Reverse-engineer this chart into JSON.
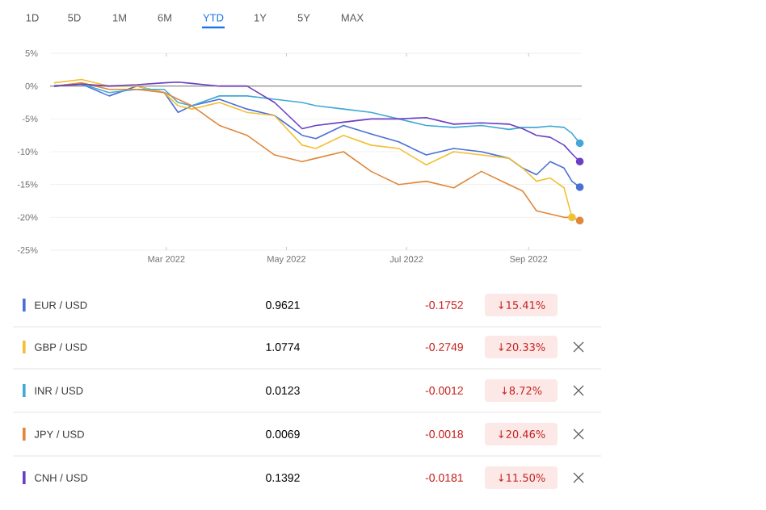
{
  "chart_data": {
    "type": "line",
    "x": [
      "2022-01-03",
      "2022-01-17",
      "2022-01-31",
      "2022-02-14",
      "2022-02-28",
      "2022-03-07",
      "2022-03-14",
      "2022-03-28",
      "2022-04-11",
      "2022-04-25",
      "2022-05-09",
      "2022-05-16",
      "2022-05-30",
      "2022-06-13",
      "2022-06-27",
      "2022-07-11",
      "2022-07-25",
      "2022-08-08",
      "2022-08-22",
      "2022-08-29",
      "2022-09-05",
      "2022-09-12",
      "2022-09-19",
      "2022-09-23",
      "2022-09-27"
    ],
    "series": [
      {
        "name": "EUR / USD",
        "color": "#4a6fd6",
        "values": [
          0,
          0.3,
          -1.5,
          0,
          -1,
          -4,
          -3,
          -2,
          -3.5,
          -4.5,
          -7.5,
          -8,
          -6,
          -7.3,
          -8.5,
          -10.5,
          -9.5,
          -10,
          -11,
          -12.5,
          -13.5,
          -11.5,
          -12.5,
          -14.5,
          -15.4
        ]
      },
      {
        "name": "GBP / USD",
        "color": "#f2c035",
        "values": [
          0.5,
          1,
          0,
          0,
          -1,
          -3,
          -3.5,
          -2.5,
          -4,
          -4.5,
          -9,
          -9.5,
          -7.5,
          -9,
          -9.5,
          -12,
          -10,
          -10.5,
          -11,
          -12.5,
          -14.5,
          -14,
          -15.5,
          -20,
          null
        ]
      },
      {
        "name": "INR / USD",
        "color": "#42a8d6",
        "values": [
          0,
          0.3,
          -1,
          -0.5,
          -0.5,
          -2.5,
          -3,
          -1.5,
          -1.5,
          -2,
          -2.5,
          -3,
          -3.5,
          -4,
          -5,
          -6,
          -6.3,
          -6,
          -6.6,
          -6.3,
          -6.3,
          -6.1,
          -6.3,
          -7.2,
          -8.7
        ]
      },
      {
        "name": "JPY / USD",
        "color": "#e0873a",
        "values": [
          0,
          0.5,
          -0.5,
          -0.5,
          -1,
          -2,
          -3,
          -6,
          -7.5,
          -10.5,
          -11.5,
          -11,
          -10,
          -13,
          -15,
          -14.5,
          -15.5,
          -13,
          -15,
          -16,
          -19,
          -19.5,
          -20,
          -20,
          -20.5
        ]
      },
      {
        "name": "CNH / USD",
        "color": "#6a3fc4",
        "values": [
          0,
          0.3,
          0,
          0.2,
          0.5,
          0.6,
          0.4,
          0,
          0,
          -2.5,
          -6.5,
          -6,
          -5.5,
          -5,
          -5,
          -4.8,
          -5.8,
          -5.6,
          -5.8,
          -6.5,
          -7.5,
          -7.8,
          -9,
          -10.3,
          -11.5
        ]
      }
    ],
    "xlim": [
      "2022-01-01",
      "2022-09-28"
    ],
    "xticks": [
      {
        "value": "2022-03-01",
        "label": "Mar 2022"
      },
      {
        "value": "2022-05-01",
        "label": "May 2022"
      },
      {
        "value": "2022-07-01",
        "label": "Jul 2022"
      },
      {
        "value": "2022-09-01",
        "label": "Sep 2022"
      }
    ],
    "ylim": [
      -25,
      5
    ],
    "yticks": [
      {
        "value": -25,
        "label": "-25%"
      },
      {
        "value": -20,
        "label": "-20%"
      },
      {
        "value": -15,
        "label": "-15%"
      },
      {
        "value": -10,
        "label": "-10%"
      },
      {
        "value": -5,
        "label": "-5%"
      },
      {
        "value": 0,
        "label": "0%"
      },
      {
        "value": 5,
        "label": "5%"
      }
    ],
    "grid": "y",
    "ref_lines": [
      {
        "axis": "y",
        "value": 0,
        "color": "#8a8a8a"
      }
    ],
    "legend": "bottom",
    "annotations": [
      "1D",
      "5D",
      "1M",
      "6M",
      "YTD",
      "1Y",
      "5Y",
      "MAX",
      "0.9621",
      "-0.1752",
      "↓15.41%",
      "1.0774",
      "-0.2749",
      "↓20.33%",
      "0.0123",
      "-0.0012",
      "↓8.72%",
      "0.0069",
      "-0.0018",
      "↓20.46%",
      "0.1392",
      "-0.0181",
      "↓11.50%"
    ]
  }
}
